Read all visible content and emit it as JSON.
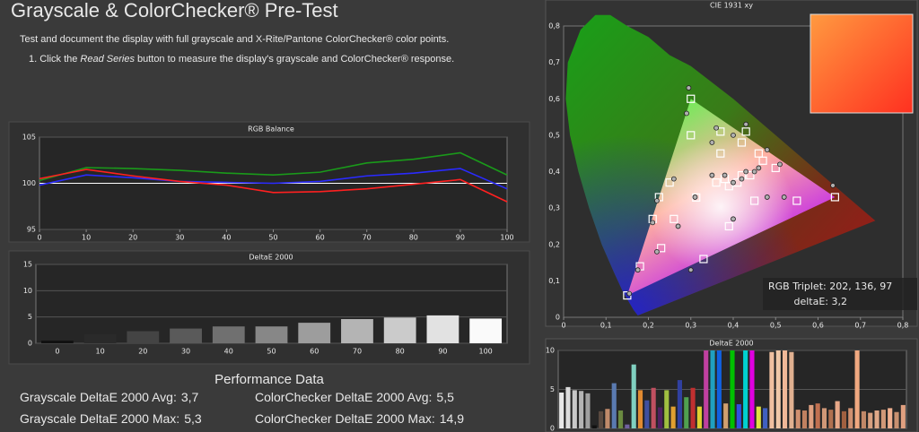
{
  "header": {
    "title": "Grayscale & ColorChecker® Pre-Test",
    "description": "Test and document the display with full grayscale and X-Rite/Pantone ColorChecker® color points.",
    "step": {
      "prefix": "1. Click the",
      "emphasis": "Read Series",
      "suffix": "button to measure the display's grayscale and ColorChecker® response."
    }
  },
  "performance": {
    "title": "Performance Data",
    "items": [
      {
        "label": "Grayscale DeltaE 2000 Avg:",
        "value": "3,7"
      },
      {
        "label": "ColorChecker DeltaE 2000 Avg:",
        "value": "5,5"
      },
      {
        "label": "Grayscale DeltaE 2000 Max:",
        "value": "5,3"
      },
      {
        "label": "ColorChecker DeltaE 2000 Max:",
        "value": "14,9"
      }
    ]
  },
  "chart_data": [
    {
      "type": "line",
      "title": "RGB Balance",
      "x": [
        0,
        10,
        20,
        30,
        40,
        50,
        60,
        70,
        80,
        90,
        100
      ],
      "xlim": [
        0,
        100
      ],
      "xticks": [
        0,
        10,
        20,
        30,
        40,
        50,
        60,
        70,
        80,
        90,
        100
      ],
      "ylim": [
        95,
        105
      ],
      "yticks": [
        95,
        100,
        105
      ],
      "grid": true,
      "series": [
        {
          "color": "#1a9a1a",
          "values": [
            100.3,
            101.7,
            101.6,
            101.4,
            101.1,
            100.9,
            101.2,
            102.2,
            102.6,
            103.3,
            100.9
          ]
        },
        {
          "color": "#2a2aff",
          "values": [
            99.8,
            100.9,
            100.6,
            100.2,
            100.1,
            100.0,
            100.2,
            100.8,
            101.1,
            101.6,
            99.4
          ]
        },
        {
          "color": "#ff2020",
          "values": [
            100.5,
            101.5,
            100.8,
            100.2,
            99.8,
            99.0,
            99.1,
            99.4,
            99.9,
            100.4,
            98.0
          ]
        }
      ]
    },
    {
      "type": "bar",
      "title": "DeltaE 2000",
      "categories": [
        "0",
        "10",
        "20",
        "30",
        "40",
        "50",
        "60",
        "70",
        "80",
        "90",
        "100"
      ],
      "values": [
        0.5,
        1.7,
        2.3,
        2.8,
        3.2,
        3.2,
        3.9,
        4.6,
        4.9,
        5.3,
        4.7
      ],
      "colors": [
        "#111111",
        "#2a2a2a",
        "#444444",
        "#5a5a5a",
        "#707070",
        "#878787",
        "#9d9d9d",
        "#b4b4b4",
        "#cbcbcb",
        "#e2e2e2",
        "#fafafa"
      ],
      "ylim": [
        0,
        15
      ],
      "yticks": [
        0,
        5,
        10,
        15
      ],
      "grid": true
    },
    {
      "type": "scatter",
      "title": "CIE 1931 xy",
      "xlim": [
        0,
        0.8
      ],
      "ylim": [
        0,
        0.8
      ],
      "xticks": [
        0,
        {
          "value": 0.1,
          "label": "0,1"
        },
        {
          "value": 0.2,
          "label": "0,2"
        },
        {
          "value": 0.3,
          "label": "0,3"
        },
        {
          "value": 0.4,
          "label": "0,4"
        },
        {
          "value": 0.5,
          "label": "0,5"
        },
        {
          "value": 0.6,
          "label": "0,6"
        },
        {
          "value": 0.7,
          "label": "0,7"
        },
        {
          "value": 0.8,
          "label": "0,8"
        }
      ],
      "yticks": [
        0,
        {
          "value": 0.1,
          "label": "0,1"
        },
        {
          "value": 0.2,
          "label": "0,2"
        },
        {
          "value": 0.3,
          "label": "0,3"
        },
        {
          "value": 0.4,
          "label": "0,4"
        },
        {
          "value": 0.5,
          "label": "0,5"
        },
        {
          "value": 0.6,
          "label": "0,6"
        },
        {
          "value": 0.7,
          "label": "0,7"
        },
        {
          "value": 0.8,
          "label": "0,8"
        }
      ],
      "annotations": [
        "RGB Triplet: 202, 136, 97",
        "deltaE: 3,2"
      ],
      "series": [
        {
          "marker": "square",
          "color": "#ffffff",
          "x": [
            0.64,
            0.3,
            0.15,
            0.3127,
            0.225,
            0.21,
            0.25,
            0.26,
            0.23,
            0.18,
            0.33,
            0.39,
            0.45,
            0.55,
            0.5,
            0.47,
            0.44,
            0.41,
            0.38,
            0.37,
            0.37,
            0.42,
            0.46,
            0.3,
            0.43,
            0.39,
            0.42,
            0.36
          ],
          "values": [
            0.33,
            0.6,
            0.06,
            0.329,
            0.33,
            0.27,
            0.37,
            0.27,
            0.19,
            0.14,
            0.16,
            0.25,
            0.32,
            0.32,
            0.41,
            0.43,
            0.39,
            0.37,
            0.38,
            0.45,
            0.51,
            0.48,
            0.45,
            0.5,
            0.51,
            0.36,
            0.39,
            0.37
          ]
        },
        {
          "marker": "circle",
          "color": "#b0b0b0",
          "x": [
            0.635,
            0.295,
            0.155,
            0.31,
            0.22,
            0.21,
            0.26,
            0.27,
            0.22,
            0.175,
            0.3,
            0.4,
            0.48,
            0.52,
            0.51,
            0.46,
            0.45,
            0.42,
            0.38,
            0.36,
            0.35,
            0.4,
            0.48,
            0.29,
            0.43,
            0.4,
            0.43,
            0.35
          ],
          "values": [
            0.362,
            0.63,
            0.065,
            0.33,
            0.32,
            0.26,
            0.38,
            0.25,
            0.18,
            0.13,
            0.13,
            0.27,
            0.33,
            0.33,
            0.42,
            0.41,
            0.4,
            0.38,
            0.39,
            0.52,
            0.48,
            0.5,
            0.46,
            0.56,
            0.53,
            0.37,
            0.4,
            0.39
          ]
        }
      ]
    },
    {
      "type": "bar",
      "title": "DeltaE 2000",
      "values": [
        4.6,
        5.3,
        4.9,
        4.8,
        4.5,
        0.4,
        2.2,
        2.5,
        5.8,
        2.3,
        0.5,
        8.2,
        4.9,
        3.6,
        5.2,
        2.7,
        4.9,
        2.8,
        6.2,
        4.0,
        5.2,
        2.8,
        10,
        10,
        10,
        3.2,
        10,
        3.1,
        10,
        10,
        2.8,
        2.6,
        9.8,
        10,
        10,
        9.8,
        2.4,
        2.3,
        3.0,
        3.2,
        2.6,
        2.4,
        3.5,
        2.2,
        2.6,
        10,
        2.2,
        2.0,
        2.3,
        2.4,
        2.6,
        2.1,
        3.0
      ],
      "colors": [
        "#e8e8e8",
        "#dcdcdc",
        "#c8c8c8",
        "#b4b4b4",
        "#a0a0a0",
        "#111111",
        "#5a4a40",
        "#c08a6a",
        "#5a7ab0",
        "#6a8a40",
        "#7060a0",
        "#80d0c0",
        "#e08a30",
        "#4050a0",
        "#c05060",
        "#502060",
        "#a0c040",
        "#e0a030",
        "#3040a0",
        "#50a050",
        "#c03030",
        "#e0d030",
        "#c040a0",
        "#20a0c0",
        "#1060e0",
        "#d0a070",
        "#00c000",
        "#3050e0",
        "#00d0d0",
        "#e000e0",
        "#e0e040",
        "#4060c0",
        "#f0c0a0",
        "#f0c8a8",
        "#f0b898",
        "#e0b090",
        "#d09070",
        "#c08060",
        "#e0a080",
        "#c07050",
        "#d09878",
        "#b07050",
        "#e8a888",
        "#a06040",
        "#d09070",
        "#f0a880",
        "#c08868",
        "#d8a080",
        "#e0a888",
        "#d09878",
        "#f0b090",
        "#c89070",
        "#e0a080"
      ],
      "ylim": [
        0,
        10
      ],
      "yticks": [
        0,
        5,
        10
      ],
      "grid": true
    }
  ]
}
